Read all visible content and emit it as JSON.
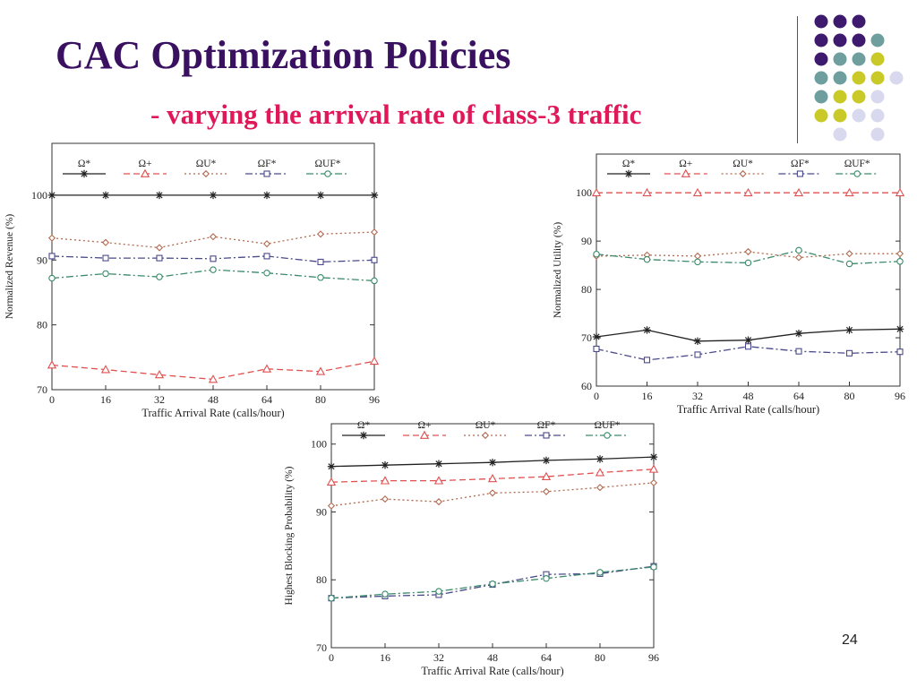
{
  "slide": {
    "title": "CAC Optimization Policies",
    "subtitle": "- varying the arrival rate of class-3 traffic",
    "page_number": "24",
    "colors": {
      "title": "#3a1060",
      "subtitle": "#e0185a"
    },
    "decor_dots": [
      [
        "#3d1a6e",
        "#3d1a6e",
        "#3d1a6e",
        null,
        null
      ],
      [
        "#3d1a6e",
        "#3d1a6e",
        "#3d1a6e",
        "#6e9e9e",
        null
      ],
      [
        "#3d1a6e",
        "#6e9e9e",
        "#6e9e9e",
        "#c9c928",
        null
      ],
      [
        "#6e9e9e",
        "#6e9e9e",
        "#c9c928",
        "#c9c928",
        "#d8d8ee"
      ],
      [
        "#6e9e9e",
        "#c9c928",
        "#c9c928",
        "#d8d8ee",
        null
      ],
      [
        "#c9c928",
        "#c9c928",
        "#d8d8ee",
        "#d8d8ee",
        null
      ],
      [
        null,
        "#d8d8ee",
        null,
        "#d8d8ee",
        null
      ]
    ]
  },
  "chart_data": [
    {
      "type": "line",
      "x": [
        0,
        16,
        32,
        48,
        64,
        80,
        96
      ],
      "xlabel": "Traffic Arrival Rate (calls/hour)",
      "ylabel": "Normalized Revenue (%)",
      "ylim": [
        70,
        108
      ],
      "yticks": [
        70,
        80,
        90,
        100
      ],
      "legend": "top",
      "series": [
        {
          "name": "Ω*",
          "color": "#222222",
          "dash": "",
          "marker": "star",
          "values": [
            100,
            100,
            100,
            100,
            100,
            100,
            100
          ]
        },
        {
          "name": "Ω+",
          "color": "#e05050",
          "dash": "7,4",
          "marker": "triangle",
          "values": [
            73.8,
            73.1,
            72.3,
            71.6,
            73.2,
            72.8,
            74.4
          ]
        },
        {
          "name": "ΩU*",
          "color": "#b06a50",
          "dash": "2,3",
          "marker": "diamond",
          "values": [
            93.4,
            92.7,
            91.9,
            93.6,
            92.5,
            94.0,
            94.3
          ]
        },
        {
          "name": "ΩF*",
          "color": "#4a4a8a",
          "dash": "8,3,2,3",
          "marker": "square",
          "values": [
            90.6,
            90.3,
            90.3,
            90.2,
            90.6,
            89.7,
            90.0
          ]
        },
        {
          "name": "ΩUF*",
          "color": "#3a8a6a",
          "dash": "8,3,2,3",
          "marker": "circle",
          "values": [
            87.2,
            87.9,
            87.4,
            88.5,
            88.0,
            87.3,
            86.8
          ]
        }
      ]
    },
    {
      "type": "line",
      "x": [
        0,
        16,
        32,
        48,
        64,
        80,
        96
      ],
      "xlabel": "Traffic Arrival Rate (calls/hour)",
      "ylabel": "Normalized Utility (%)",
      "ylim": [
        60,
        108
      ],
      "yticks": [
        60,
        70,
        80,
        90,
        100
      ],
      "legend": "top",
      "series": [
        {
          "name": "Ω*",
          "color": "#222222",
          "dash": "",
          "marker": "star",
          "values": [
            70.2,
            71.6,
            69.3,
            69.5,
            70.9,
            71.6,
            71.8
          ]
        },
        {
          "name": "Ω+",
          "color": "#e05050",
          "dash": "7,4",
          "marker": "triangle",
          "values": [
            100,
            100,
            100,
            100,
            100,
            100,
            100
          ]
        },
        {
          "name": "ΩU*",
          "color": "#b06a50",
          "dash": "2,3",
          "marker": "diamond",
          "values": [
            86.9,
            87.1,
            86.9,
            87.8,
            86.6,
            87.4,
            87.4
          ]
        },
        {
          "name": "ΩF*",
          "color": "#4a4a8a",
          "dash": "8,3,2,3",
          "marker": "square",
          "values": [
            67.7,
            65.4,
            66.5,
            68.2,
            67.2,
            66.8,
            67.1
          ]
        },
        {
          "name": "ΩUF*",
          "color": "#3a8a6a",
          "dash": "8,3,2,3",
          "marker": "circle",
          "values": [
            87.3,
            86.2,
            85.7,
            85.5,
            88.1,
            85.3,
            85.8
          ]
        }
      ]
    },
    {
      "type": "line",
      "x": [
        0,
        16,
        32,
        48,
        64,
        80,
        96
      ],
      "xlabel": "Traffic Arrival Rate (calls/hour)",
      "ylabel": "Highest Blocking Probability (%)",
      "ylim": [
        70,
        103
      ],
      "yticks": [
        70,
        80,
        90,
        100
      ],
      "legend": "top",
      "series": [
        {
          "name": "Ω*",
          "color": "#222222",
          "dash": "",
          "marker": "star",
          "values": [
            96.7,
            96.9,
            97.1,
            97.3,
            97.6,
            97.8,
            98.1
          ]
        },
        {
          "name": "Ω+",
          "color": "#e05050",
          "dash": "7,4",
          "marker": "triangle",
          "values": [
            94.4,
            94.6,
            94.6,
            94.9,
            95.2,
            95.8,
            96.3
          ]
        },
        {
          "name": "ΩU*",
          "color": "#b06a50",
          "dash": "2,3",
          "marker": "diamond",
          "values": [
            90.9,
            91.9,
            91.5,
            92.8,
            93.0,
            93.6,
            94.3
          ]
        },
        {
          "name": "ΩF*",
          "color": "#4a4a8a",
          "dash": "8,3,2,3",
          "marker": "square",
          "values": [
            77.3,
            77.6,
            77.8,
            79.3,
            80.8,
            80.9,
            82.0
          ]
        },
        {
          "name": "ΩUF*",
          "color": "#3a8a6a",
          "dash": "8,3,2,3",
          "marker": "circle",
          "values": [
            77.3,
            77.9,
            78.3,
            79.4,
            80.2,
            81.1,
            81.9
          ]
        }
      ]
    }
  ]
}
